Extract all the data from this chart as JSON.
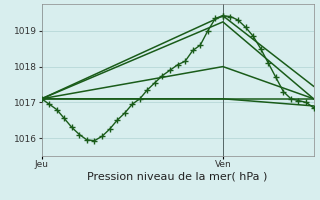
{
  "background_color": "#d8eeee",
  "grid_color": "#b0d4d4",
  "line_color": "#1a5c1a",
  "ylim": [
    1015.5,
    1019.75
  ],
  "yticks": [
    1016,
    1017,
    1018,
    1019
  ],
  "xlabel": "Pression niveau de la mer( hPa )",
  "day_labels": [
    "Jeu",
    "Ven"
  ],
  "series_main": {
    "x": [
      0,
      1,
      2,
      3,
      4,
      5,
      6,
      7,
      8,
      9,
      10,
      11,
      12,
      13,
      14,
      15,
      16,
      17,
      18,
      19,
      20,
      21,
      22,
      23,
      24
    ],
    "y": [
      1017.1,
      1016.95,
      1016.8,
      1016.55,
      1016.3,
      1016.1,
      1015.95,
      1015.93,
      1016.05,
      1016.25,
      1016.5,
      1016.7,
      1016.95,
      1017.1,
      1017.35,
      1017.55,
      1017.75,
      1017.9,
      1018.05,
      1018.15,
      1018.45,
      1018.6,
      1019.0,
      1019.35,
      1019.42
    ],
    "marker": "+",
    "markersize": 4,
    "linewidth": 1.0
  },
  "series_right": {
    "x": [
      24,
      25,
      26,
      27,
      28,
      29,
      30,
      31,
      32,
      33,
      34,
      35,
      36
    ],
    "y": [
      1019.42,
      1019.4,
      1019.3,
      1019.1,
      1018.85,
      1018.5,
      1018.1,
      1017.7,
      1017.3,
      1017.1,
      1017.05,
      1017.0,
      1016.85
    ],
    "marker": "+",
    "markersize": 4,
    "linewidth": 1.0
  },
  "lines": [
    {
      "x": [
        0,
        24,
        36
      ],
      "y": [
        1017.1,
        1019.42,
        1017.45
      ],
      "linewidth": 1.1
    },
    {
      "x": [
        0,
        24,
        36
      ],
      "y": [
        1017.1,
        1019.25,
        1017.1
      ],
      "linewidth": 1.1
    },
    {
      "x": [
        0,
        12,
        24,
        36
      ],
      "y": [
        1017.1,
        1017.55,
        1018.0,
        1017.1
      ],
      "linewidth": 1.1
    },
    {
      "x": [
        0,
        24,
        36
      ],
      "y": [
        1017.1,
        1017.1,
        1017.1
      ],
      "linewidth": 1.1
    },
    {
      "x": [
        0,
        24,
        36
      ],
      "y": [
        1017.1,
        1017.1,
        1016.9
      ],
      "linewidth": 1.1
    }
  ],
  "vline_x": 24,
  "vline_color": "#556666",
  "xlim": [
    0,
    36
  ],
  "jeu_x": 0,
  "ven_x": 24,
  "xlabel_fontsize": 8,
  "tick_fontsize": 6.5
}
